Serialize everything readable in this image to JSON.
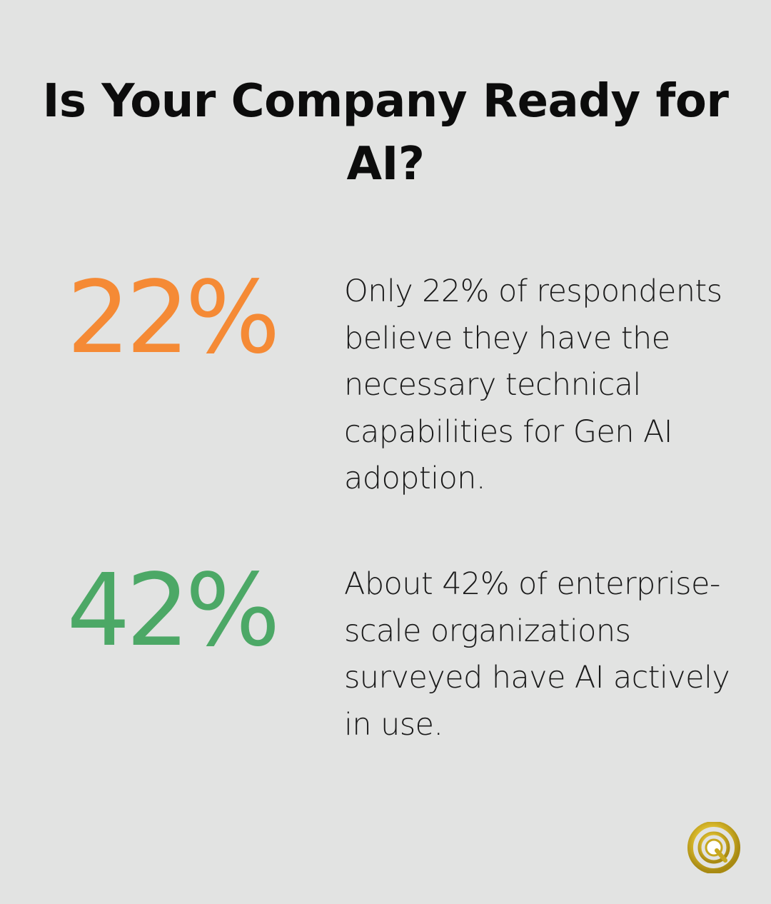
{
  "title": "Is Your Company Ready for AI?",
  "stats": [
    {
      "value": "22%",
      "text": "Only 22% of respondents believe they have the necessary technical capabilities for Gen AI adoption.",
      "color": "#f58a35"
    },
    {
      "value": "42%",
      "text": "About 42% of enterprise-scale organizations surveyed have AI actively in use.",
      "color": "#4ca866"
    }
  ],
  "colors": {
    "background": "#e2e3e2",
    "title": "#0c0c0c",
    "body_text": "#1a1a1a",
    "logo_gold": "#d9b92c"
  },
  "logo": {
    "icon": "gold-circle-q-logo"
  }
}
